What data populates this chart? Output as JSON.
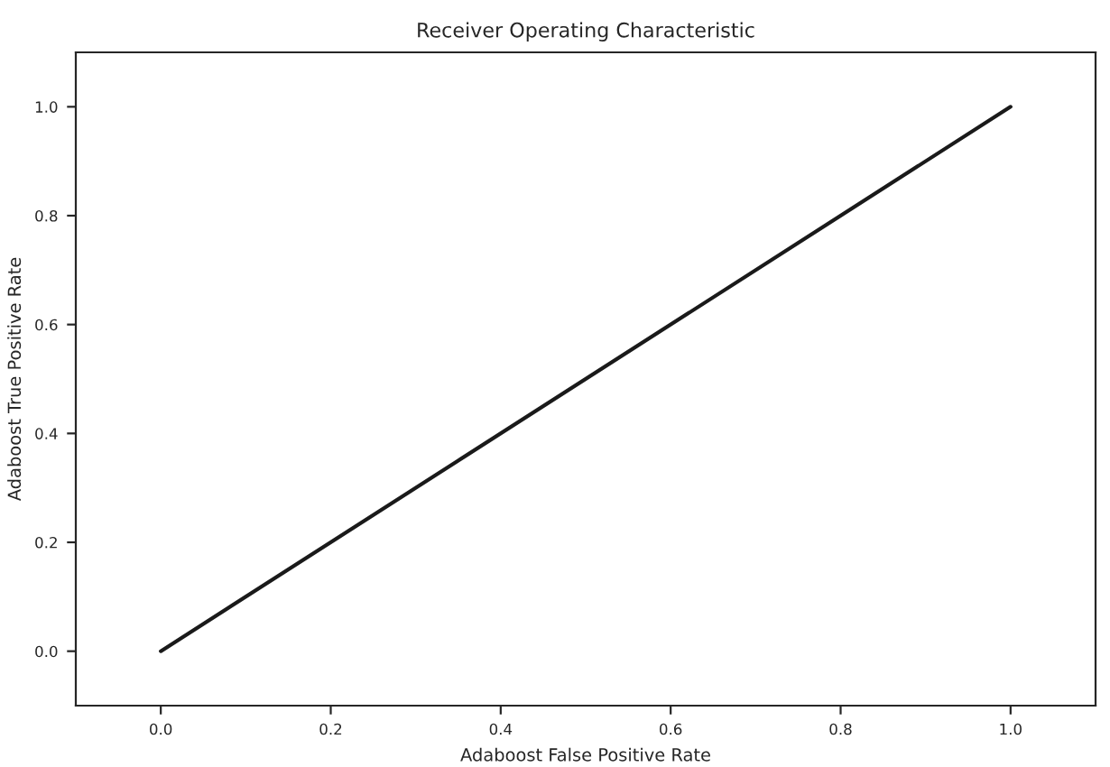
{
  "chart_data": {
    "type": "line",
    "title": "Receiver Operating Characteristic",
    "xlabel": "Adaboost False Positive Rate",
    "ylabel": "Adaboost True Positive Rate",
    "x": [
      0.0,
      1.0
    ],
    "series": [
      {
        "color": "#1a1a1a",
        "values": [
          0.0,
          1.0
        ]
      }
    ],
    "xlim": [
      -0.1,
      1.1
    ],
    "ylim": [
      -0.1,
      1.1
    ],
    "xticks": [
      {
        "value": 0,
        "label": "0.0"
      },
      0.2,
      0.4,
      0.6,
      0.8,
      {
        "value": 1,
        "label": "1.0"
      }
    ],
    "yticks": [
      {
        "value": 0,
        "label": "0.0"
      },
      0.2,
      0.4,
      0.6,
      0.8,
      {
        "value": 1,
        "label": "1.0"
      }
    ],
    "grid": false,
    "legend": false
  }
}
